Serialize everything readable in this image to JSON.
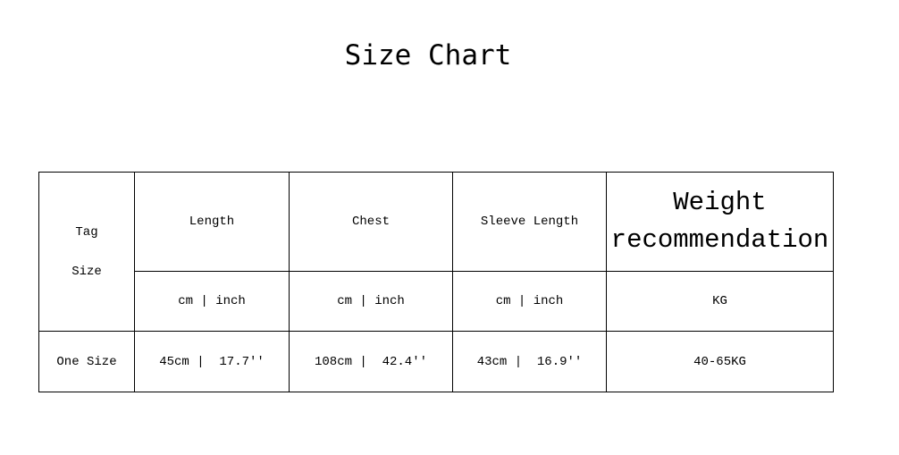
{
  "title": "Size Chart",
  "table": {
    "tag_size": [
      "Tag",
      "Size"
    ],
    "headers": [
      "Length",
      "Chest",
      "Sleeve Length"
    ],
    "weight_header": [
      "Weight",
      "recommendation"
    ],
    "units": [
      "cm | inch",
      "cm | inch",
      "cm | inch",
      "KG"
    ],
    "rows": [
      {
        "size": "One Size",
        "values": [
          "45cm |  17.7''",
          "108cm |  42.4''",
          "43cm |  16.9''",
          "40-65KG"
        ]
      }
    ]
  }
}
